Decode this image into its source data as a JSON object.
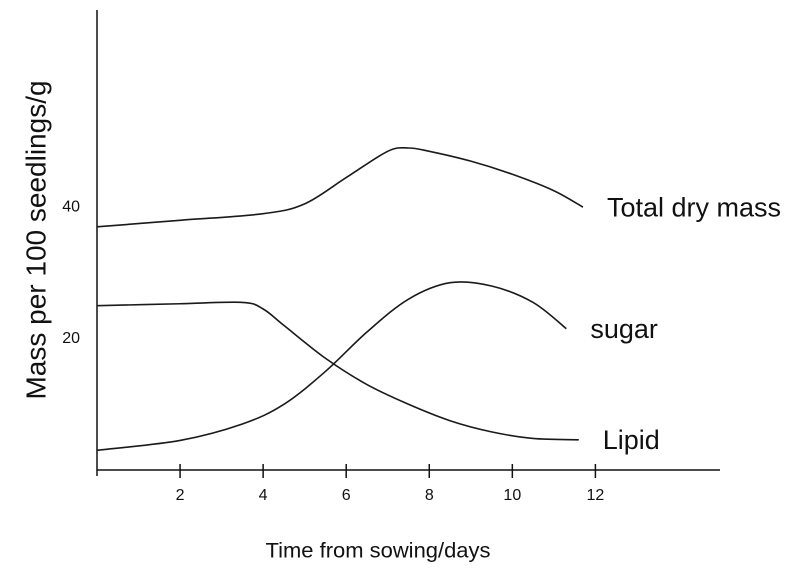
{
  "chart_data": {
    "type": "line",
    "x_label": "Time from sowing/days",
    "y_label": "Mass per 100 seedlings/g",
    "xlim": [
      0,
      15
    ],
    "xticks": [
      2,
      4,
      6,
      8,
      10,
      12
    ],
    "ylim": [
      0,
      70
    ],
    "yticks": [
      20,
      40
    ],
    "color": "#1a1a1a",
    "series": [
      {
        "name": "Total dry mass",
        "x": [
          0,
          2,
          4,
          5,
          6,
          7,
          7.5,
          8,
          9,
          10,
          11,
          11.7
        ],
        "values": [
          37,
          38,
          39,
          40.5,
          44.5,
          48.5,
          49,
          48.5,
          47,
          45,
          42.5,
          40
        ]
      },
      {
        "name": "sugar",
        "x": [
          0,
          2,
          3.5,
          4.5,
          5.5,
          6.5,
          7.5,
          8.5,
          9.5,
          10.5,
          11.3
        ],
        "values": [
          3,
          4.5,
          7,
          10,
          15,
          21,
          26,
          28.5,
          28,
          25.5,
          21.5
        ]
      },
      {
        "name": "Lipid",
        "x": [
          0,
          2,
          3.5,
          4,
          4.5,
          5.5,
          6.5,
          7.5,
          8.5,
          9.5,
          10.5,
          11.6
        ],
        "values": [
          25,
          25.3,
          25.5,
          24.5,
          22,
          17,
          13,
          10,
          7.5,
          5.8,
          4.8,
          4.6
        ]
      }
    ]
  }
}
